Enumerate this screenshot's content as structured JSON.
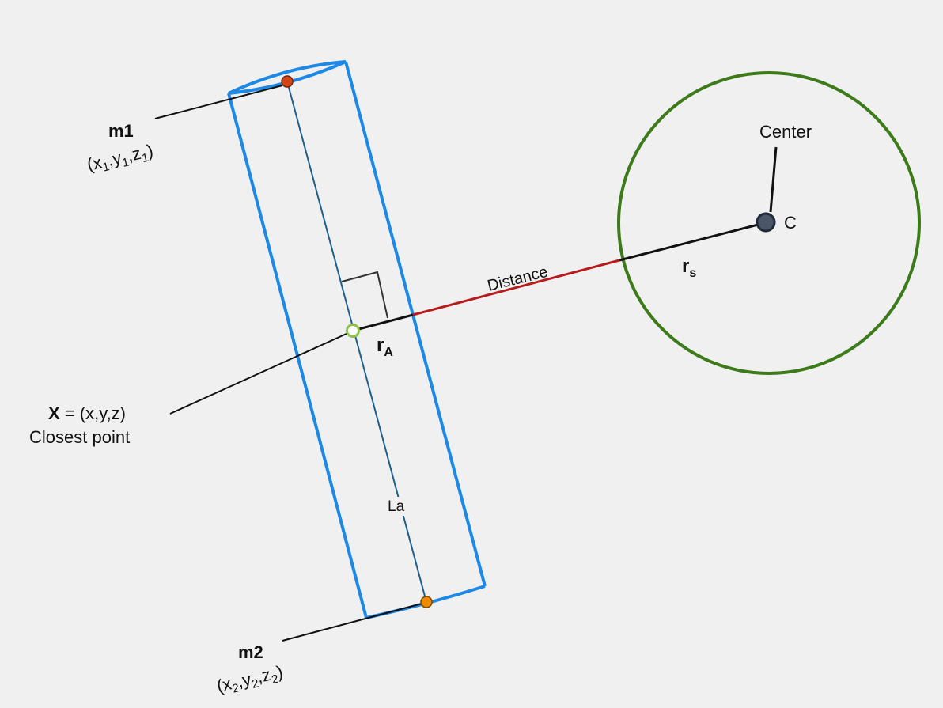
{
  "labels": {
    "m1": "m1",
    "m1_coords": {
      "open": "(x",
      "s1": "1",
      "c1": ",y",
      "s2": "1",
      "c2": ",z",
      "s3": "1",
      "close": ")"
    },
    "m2": "m2",
    "m2_coords": {
      "open": "(x",
      "s1": "2",
      "c1": ",y",
      "s2": "2",
      "c2": ",z",
      "s3": "2",
      "close": ")"
    },
    "center": "Center",
    "c": "C",
    "distance": "Distance",
    "r_s": {
      "main": "r",
      "sub": "s"
    },
    "r_a": {
      "main": "r",
      "sub": "A"
    },
    "x_point": {
      "bold": "X",
      "rest": " = (x,y,z)"
    },
    "closest_point": "Closest point",
    "la": "La"
  },
  "colors": {
    "background": "#f0f0f0",
    "cylinder": "#1e88e5",
    "axis": "#1f5f8b",
    "sphere": "#3d7a1a",
    "distance": "#b71c1c",
    "leader": "#111111",
    "m1_point": "#d84315",
    "m2_point": "#ef8a00",
    "closest_point": "#8bc34a",
    "center_point": "#4a5568"
  }
}
